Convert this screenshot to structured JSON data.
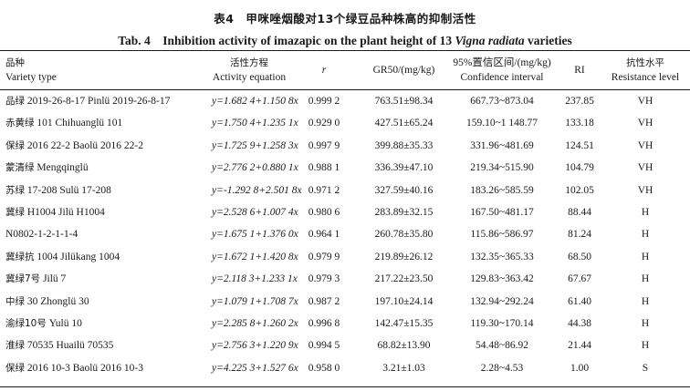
{
  "caption": {
    "cn": "表4　甲咪唑烟酸对13个绿豆品种株高的抑制活性",
    "en_prefix": "Tab. 4　Inhibition activity of imazapic on the plant height of 13 ",
    "en_species": "Vigna radiata",
    "en_suffix": " varieties"
  },
  "headers": {
    "variety_cn": "品种",
    "variety_en": "Variety type",
    "equation_cn": "活性方程",
    "equation_en": "Activity equation",
    "r": "r",
    "gr50": "GR50/(mg/kg)",
    "ci_cn": "95%置信区间/(mg/kg)",
    "ci_en": "Confidence interval",
    "ri": "RI",
    "level_cn": "抗性水平",
    "level_en": "Resistance level"
  },
  "rows": [
    {
      "variety_cn": "品绿",
      "variety_en": "2019-26-8-17 Pinlü 2019-26-8-17",
      "equation": "y=1.682 4+1.150 8x",
      "r": "0.999 2",
      "gr50": "763.51±98.34",
      "ci": "667.73~873.04",
      "ri": "237.85",
      "level": "VH"
    },
    {
      "variety_cn": "赤黄绿",
      "variety_en": "101 Chihuanglü 101",
      "equation": "y=1.750 4+1.235 1x",
      "r": "0.929 0",
      "gr50": "427.51±65.24",
      "ci": "159.10~1 148.77",
      "ri": "133.18",
      "level": "VH"
    },
    {
      "variety_cn": "保绿",
      "variety_en": "2016 22-2 Baolü 2016 22-2",
      "equation": "y=1.725 9+1.258 3x",
      "r": "0.997 9",
      "gr50": "399.88±35.33",
      "ci": "331.96~481.69",
      "ri": "124.51",
      "level": "VH"
    },
    {
      "variety_cn": "蒙清绿",
      "variety_en": "Mengqinglü",
      "equation": "y=2.776 2+0.880 1x",
      "r": "0.988 1",
      "gr50": "336.39±47.10",
      "ci": "219.34~515.90",
      "ri": "104.79",
      "level": "VH"
    },
    {
      "variety_cn": "苏绿",
      "variety_en": "17-208 Sulü 17-208",
      "equation": "y=-1.292 8+2.501 8x",
      "r": "0.971 2",
      "gr50": "327.59±40.16",
      "ci": "183.26~585.59",
      "ri": "102.05",
      "level": "VH"
    },
    {
      "variety_cn": "冀绿",
      "variety_en": "H1004 Jilü H1004",
      "equation": "y=2.528 6+1.007 4x",
      "r": "0.980 6",
      "gr50": "283.89±32.15",
      "ci": "167.50~481.17",
      "ri": "88.44",
      "level": "H"
    },
    {
      "variety_cn": "",
      "variety_en": "N0802-1-2-1-1-4",
      "equation": "y=1.675 1+1.376 0x",
      "r": "0.964 1",
      "gr50": "260.78±35.80",
      "ci": "115.86~586.97",
      "ri": "81.24",
      "level": "H"
    },
    {
      "variety_cn": "冀绿抗",
      "variety_en": "1004 Jilükang 1004",
      "equation": "y=1.672 1+1.420 8x",
      "r": "0.979 9",
      "gr50": "219.89±26.12",
      "ci": "132.35~365.33",
      "ri": "68.50",
      "level": "H"
    },
    {
      "variety_cn": "冀绿7号",
      "variety_en": "Jilü 7",
      "equation": "y=2.118 3+1.233 1x",
      "r": "0.979 3",
      "gr50": "217.22±23.50",
      "ci": "129.83~363.42",
      "ri": "67.67",
      "level": "H"
    },
    {
      "variety_cn": "中绿",
      "variety_en": "30 Zhonglü 30",
      "equation": "y=1.079 1+1.708 7x",
      "r": "0.987 2",
      "gr50": "197.10±24.14",
      "ci": "132.94~292.24",
      "ri": "61.40",
      "level": "H"
    },
    {
      "variety_cn": "渝绿10号",
      "variety_en": "Yulü 10",
      "equation": "y=2.285 8+1.260 2x",
      "r": "0.996 8",
      "gr50": "142.47±15.35",
      "ci": "119.30~170.14",
      "ri": "44.38",
      "level": "H"
    },
    {
      "variety_cn": "淮绿",
      "variety_en": "70535 Huailü 70535",
      "equation": "y=2.756 3+1.220 9x",
      "r": "0.994 5",
      "gr50": "68.82±13.90",
      "ci": "54.48~86.92",
      "ri": "21.44",
      "level": "H"
    },
    {
      "variety_cn": "保绿",
      "variety_en": "2016 10-3 Baolü 2016 10-3",
      "equation": "y=4.225 3+1.527 6x",
      "r": "0.958 0",
      "gr50": "3.21±1.03",
      "ci": "2.28~4.53",
      "ri": "1.00",
      "level": "S"
    }
  ]
}
